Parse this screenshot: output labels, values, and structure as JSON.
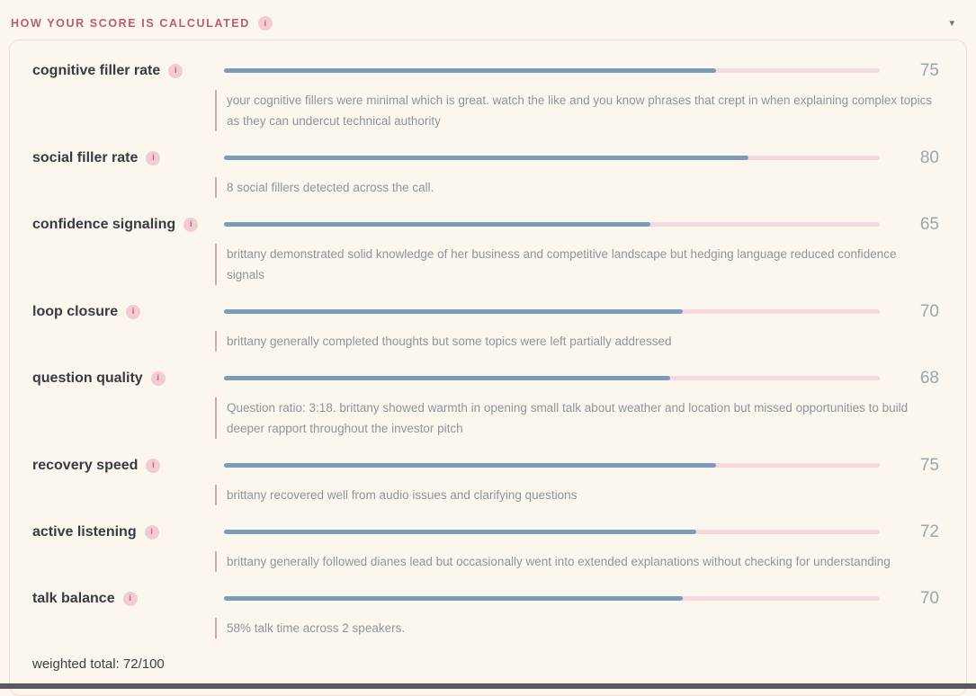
{
  "header": {
    "title": "HOW YOUR SCORE IS CALCULATED"
  },
  "icons": {
    "info": "i",
    "chevron_down": "▾"
  },
  "metrics": [
    {
      "label": "cognitive filler rate",
      "score": 75,
      "description": "your cognitive fillers were minimal which is great. watch the like and you know phrases that crept in when explaining complex topics as they can undercut technical authority"
    },
    {
      "label": "social filler rate",
      "score": 80,
      "description": "8 social fillers detected across the call."
    },
    {
      "label": "confidence signaling",
      "score": 65,
      "description": "brittany demonstrated solid knowledge of her business and competitive landscape but hedging language reduced confidence signals"
    },
    {
      "label": "loop closure",
      "score": 70,
      "description": "brittany generally completed thoughts but some topics were left partially addressed"
    },
    {
      "label": "question quality",
      "score": 68,
      "description": "Question ratio: 3:18. brittany showed warmth in opening small talk about weather and location but missed opportunities to build deeper rapport throughout the investor pitch"
    },
    {
      "label": "recovery speed",
      "score": 75,
      "description": "brittany recovered well from audio issues and clarifying questions"
    },
    {
      "label": "active listening",
      "score": 72,
      "description": "brittany generally followed dianes lead but occasionally went into extended explanations without checking for understanding"
    },
    {
      "label": "talk balance",
      "score": 70,
      "description": "58% talk time across 2 speakers."
    }
  ],
  "footer": {
    "weighted_total": "weighted total: 72/100"
  },
  "colors": {
    "bar_fill": "#7d9ab8",
    "bar_track": "#f4d9de",
    "accent": "#b95c76"
  }
}
